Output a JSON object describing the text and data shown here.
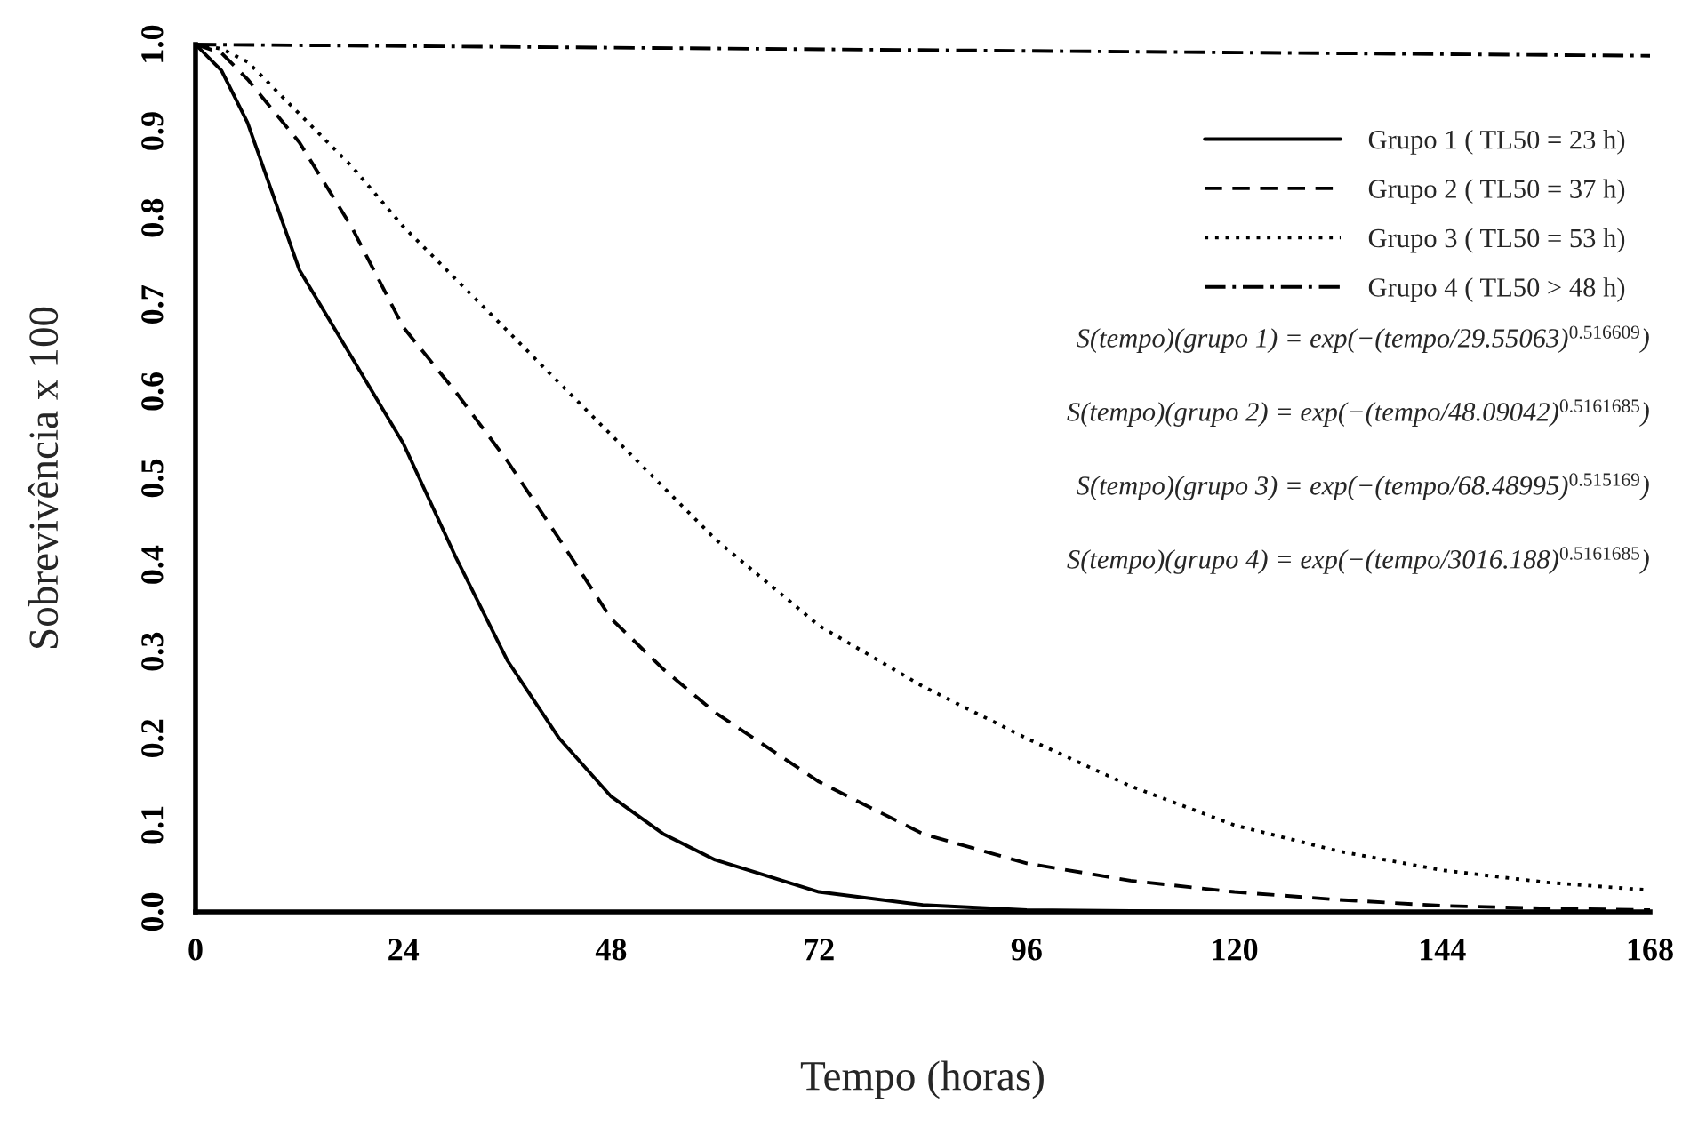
{
  "chart_data": {
    "type": "line",
    "xlabel": "Tempo (horas)",
    "ylabel": "Sobrevivência x 100",
    "x": [
      0,
      3,
      6,
      12,
      18,
      24,
      30,
      36,
      42,
      48,
      54,
      60,
      72,
      84,
      96,
      108,
      120,
      132,
      144,
      156,
      168
    ],
    "xlim": [
      0,
      168
    ],
    "xticks": [
      0,
      24,
      48,
      72,
      96,
      120,
      144,
      168
    ],
    "ylim": [
      0,
      1
    ],
    "yticks": [
      {
        "value": 0,
        "label": "0.0"
      },
      0.1,
      0.2,
      0.3,
      0.4,
      0.5,
      0.6,
      0.7,
      0.8,
      0.9,
      {
        "value": 1,
        "label": "1.0"
      }
    ],
    "grid": false,
    "legend": "top right",
    "marker": "none",
    "series": [
      {
        "name": "Grupo 1 ( TL50 = 23 h)",
        "color": "#000000",
        "line_style": "solid",
        "values": [
          1,
          0.97,
          0.91,
          0.74,
          0.64,
          0.54,
          0.41,
          0.29,
          0.2,
          0.133,
          0.09,
          0.06,
          0.023,
          0.008,
          0.002,
          0.001,
          0,
          0,
          0,
          0,
          0
        ]
      },
      {
        "name": "Grupo 2 ( TL50 = 37 h)",
        "color": "#000000",
        "line_style": "dashed",
        "values": [
          1,
          0.99,
          0.96,
          0.887,
          0.79,
          0.674,
          0.6,
          0.52,
          0.43,
          0.338,
          0.28,
          0.23,
          0.15,
          0.09,
          0.056,
          0.036,
          0.023,
          0.014,
          0.007,
          0.004,
          0.002
        ]
      },
      {
        "name": "Grupo 3 ( TL50 = 53 h)",
        "color": "#000000",
        "line_style": "dotted",
        "values": [
          1,
          0.995,
          0.98,
          0.92,
          0.86,
          0.79,
          0.73,
          0.67,
          0.61,
          0.55,
          0.49,
          0.43,
          0.33,
          0.26,
          0.2,
          0.145,
          0.1,
          0.07,
          0.048,
          0.034,
          0.025
        ]
      },
      {
        "name": "Grupo 4 ( TL50 > 48 h)",
        "color": "#000000",
        "line_style": "dashdot",
        "x": [
          0,
          168
        ],
        "values": [
          1,
          0.987
        ]
      }
    ],
    "annotations": [
      "S(tempo)(grupo 1) = exp(−(tempo/29.55063)$^{0.516609}$)",
      "S(tempo)(grupo 2) = exp(−(tempo/48.09042)$^{0.5161685}$)",
      "S(tempo)(grupo 3) = exp(−(tempo/68.48995)$^{0.515169}$)",
      "S(tempo)(grupo 4) = exp(−(tempo/3016.188)$^{0.5161685}$)"
    ]
  }
}
